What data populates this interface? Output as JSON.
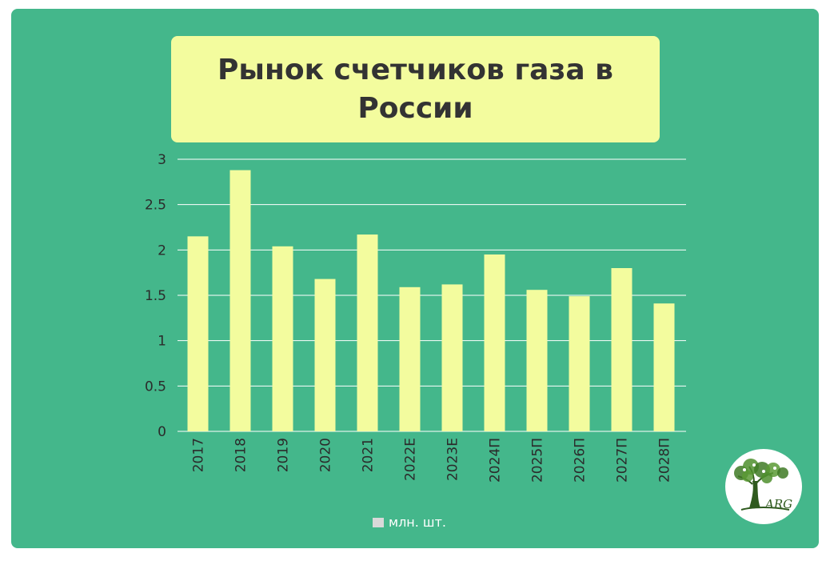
{
  "chart_data": {
    "type": "bar",
    "title": "Рынок счетчиков газа в России",
    "categories": [
      "2017",
      "2018",
      "2019",
      "2020",
      "2021",
      "2022Е",
      "2023Е",
      "2024П",
      "2025П",
      "2026П",
      "2027П",
      "2028П"
    ],
    "series": [
      {
        "name": "млн. шт.",
        "values": [
          2.15,
          2.88,
          2.04,
          1.68,
          2.17,
          1.59,
          1.62,
          1.95,
          1.56,
          1.49,
          1.8,
          1.41
        ]
      }
    ],
    "yticks": [
      "0",
      "0.5",
      "1",
      "1.5",
      "2",
      "2.5",
      "3"
    ],
    "ylim": [
      0,
      3
    ],
    "grid": true,
    "legend": "bottom",
    "colors": {
      "bar": "#f3fc9e",
      "background": "#44b78b",
      "title_box": "#f3fc9e",
      "grid": "#ffffff",
      "legend_swatch": "#d9d9d9"
    }
  },
  "logo": {
    "text": "ARG",
    "icon": "tree-icon"
  }
}
